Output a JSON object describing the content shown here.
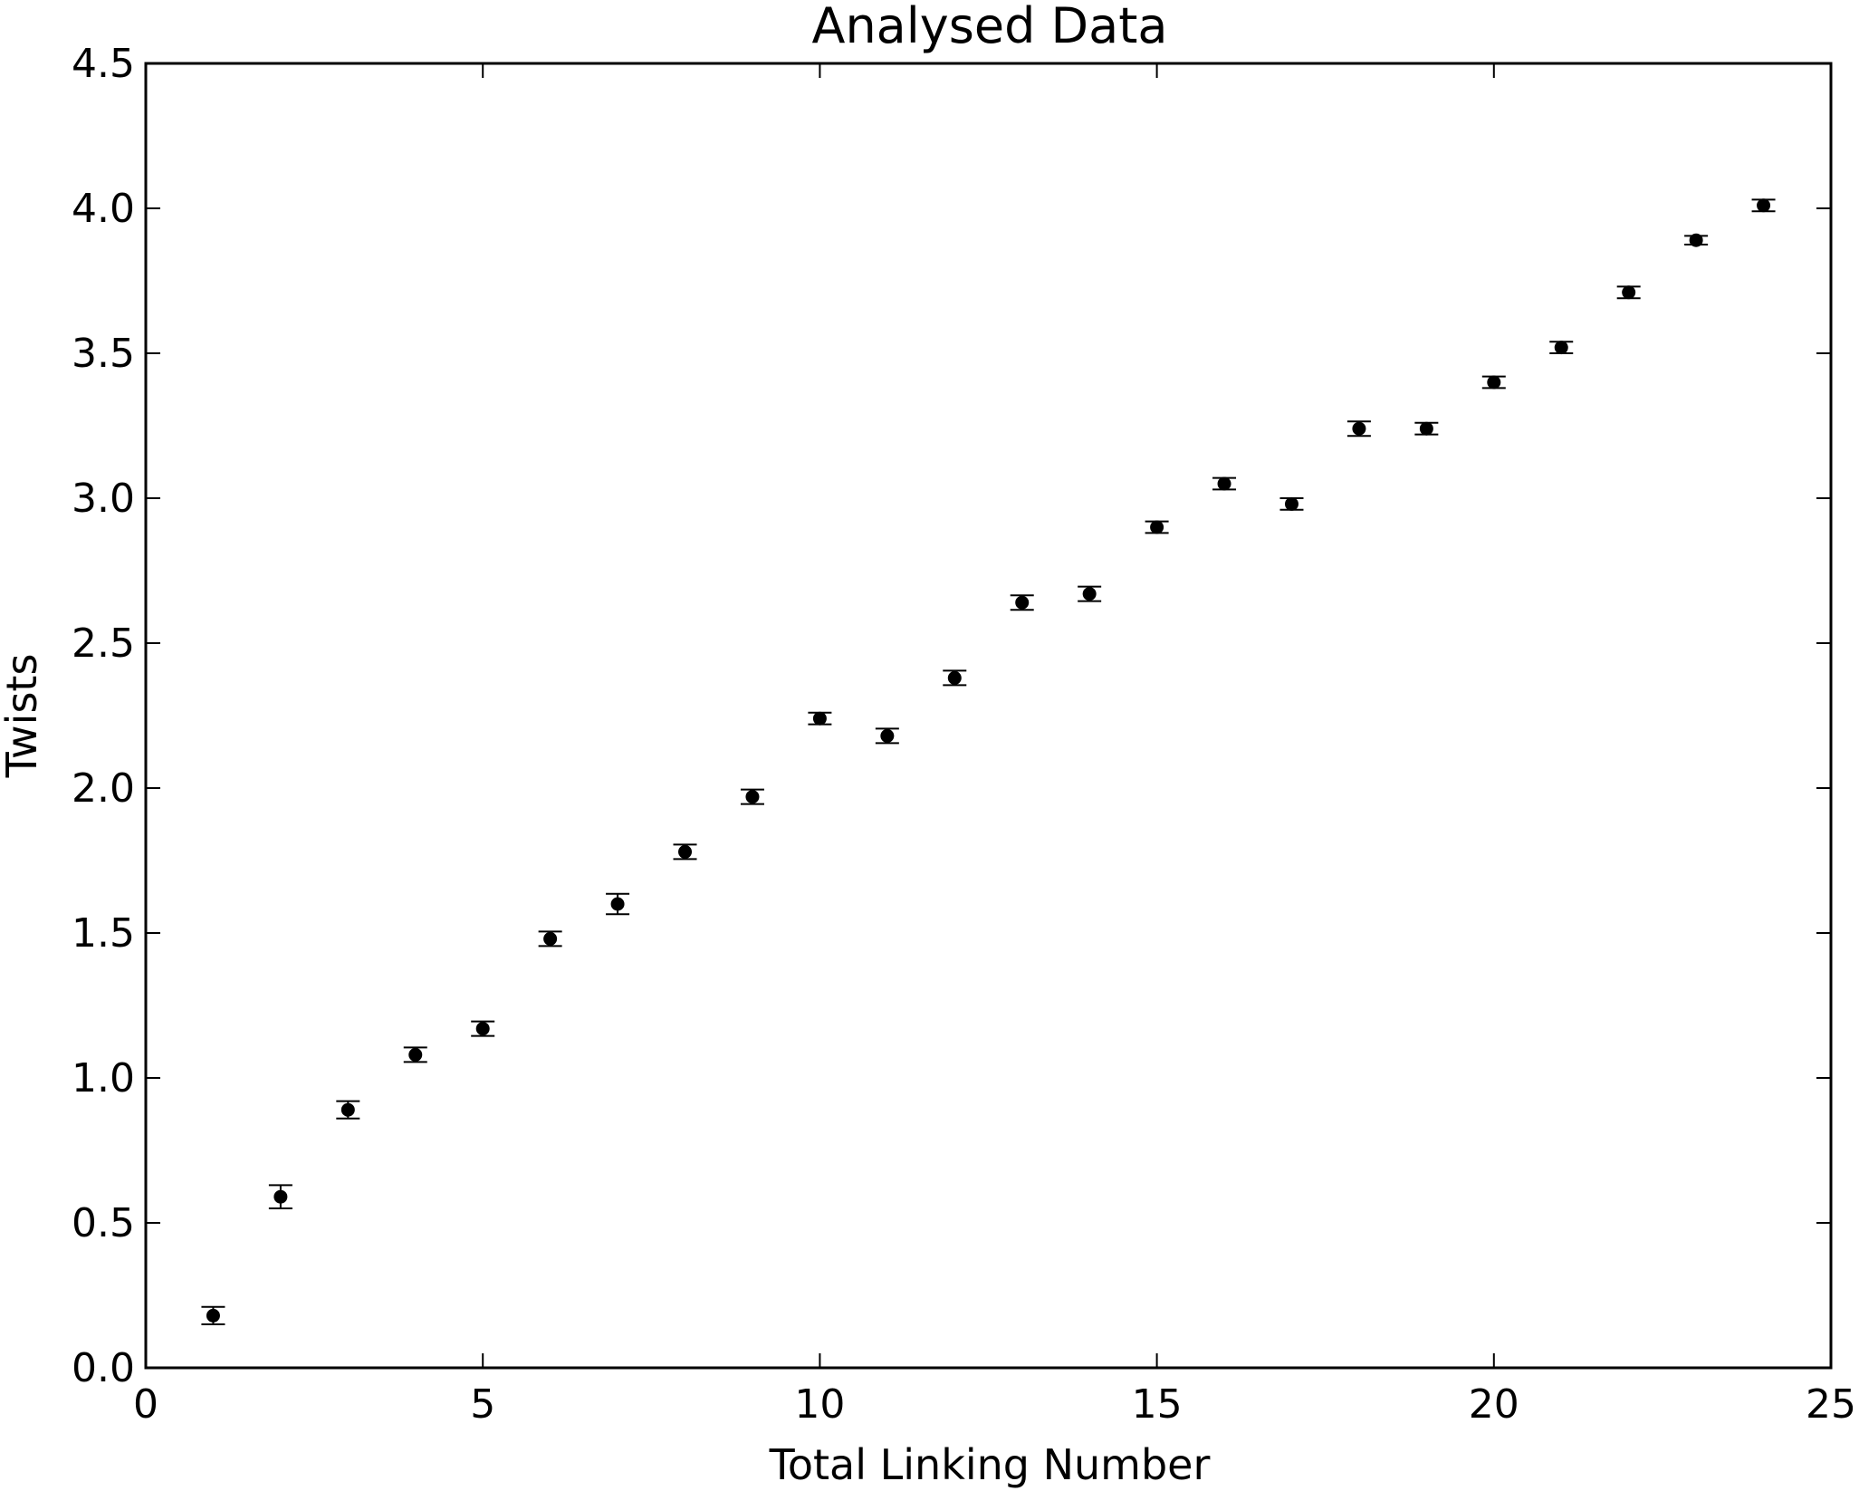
{
  "chart_data": {
    "type": "scatter",
    "title": "Analysed Data",
    "xlabel": "Total Linking Number",
    "ylabel": "Twists",
    "xlim": [
      0,
      25
    ],
    "ylim": [
      0,
      4.5
    ],
    "xticks": [
      "0",
      "5",
      "10",
      "15",
      "20",
      "25"
    ],
    "yticks": [
      "0.0",
      "0.5",
      "1.0",
      "1.5",
      "2.0",
      "2.5",
      "3.0",
      "3.5",
      "4.0",
      "4.5"
    ],
    "grid": false,
    "marker_color": "#000000",
    "series": [
      {
        "x": [
          1,
          2,
          3,
          4,
          5,
          6,
          7,
          8,
          9,
          10,
          11,
          12,
          13,
          14,
          15,
          16,
          17,
          18,
          19,
          20,
          21,
          22,
          23,
          24
        ],
        "y": [
          0.18,
          0.59,
          0.89,
          1.08,
          1.17,
          1.48,
          1.6,
          1.78,
          1.97,
          2.24,
          2.18,
          2.38,
          2.64,
          2.67,
          2.9,
          3.05,
          2.98,
          3.24,
          3.24,
          3.4,
          3.52,
          3.71,
          3.89,
          4.01
        ],
        "yerr": [
          0.03,
          0.04,
          0.03,
          0.025,
          0.025,
          0.025,
          0.035,
          0.025,
          0.025,
          0.02,
          0.025,
          0.025,
          0.025,
          0.025,
          0.02,
          0.02,
          0.02,
          0.025,
          0.02,
          0.02,
          0.02,
          0.02,
          0.015,
          0.02
        ]
      }
    ]
  }
}
